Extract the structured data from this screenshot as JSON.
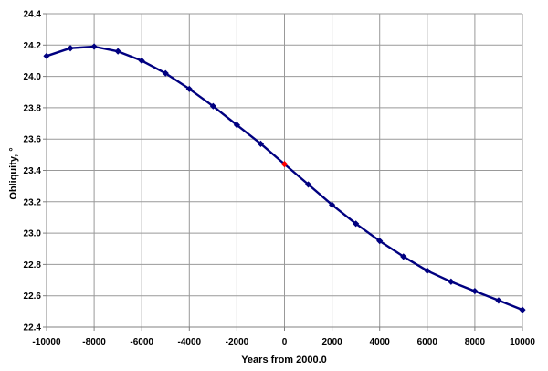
{
  "chart_data": {
    "type": "line",
    "title": "",
    "xlabel": "Years from 2000.0",
    "ylabel": "Obliquity, °",
    "xlim": [
      -10000,
      10000
    ],
    "ylim": [
      22.4,
      24.4
    ],
    "grid": true,
    "legend": "none",
    "x_tick_labels": [
      "-10000",
      "-8000",
      "-6000",
      "-4000",
      "-2000",
      "0",
      "2000",
      "4000",
      "6000",
      "8000",
      "10000"
    ],
    "y_tick_labels": [
      "22.4",
      "22.6",
      "22.8",
      "23.0",
      "23.2",
      "23.4",
      "23.6",
      "23.8",
      "24.0",
      "24.2",
      "24.4"
    ],
    "x": [
      -10000,
      -9000,
      -8000,
      -7000,
      -6000,
      -5000,
      -4000,
      -3000,
      -2000,
      -1000,
      0,
      1000,
      2000,
      3000,
      4000,
      5000,
      6000,
      7000,
      8000,
      9000,
      10000
    ],
    "series": [
      {
        "name": "Obliquity",
        "marker": "diamond",
        "color": "#000080",
        "values": [
          24.13,
          24.18,
          24.19,
          24.16,
          24.1,
          24.02,
          23.92,
          23.81,
          23.69,
          23.57,
          23.44,
          23.31,
          23.18,
          23.06,
          22.95,
          22.85,
          22.76,
          22.69,
          22.63,
          22.57,
          22.51
        ]
      }
    ],
    "highlight_point": {
      "x": 0,
      "value": 23.44,
      "color": "#ff0000"
    }
  },
  "colors": {
    "line": "#000080",
    "highlight": "#ff0000",
    "grid": "#999999",
    "axis": "#808080",
    "text": "#000000",
    "background": "#ffffff"
  }
}
